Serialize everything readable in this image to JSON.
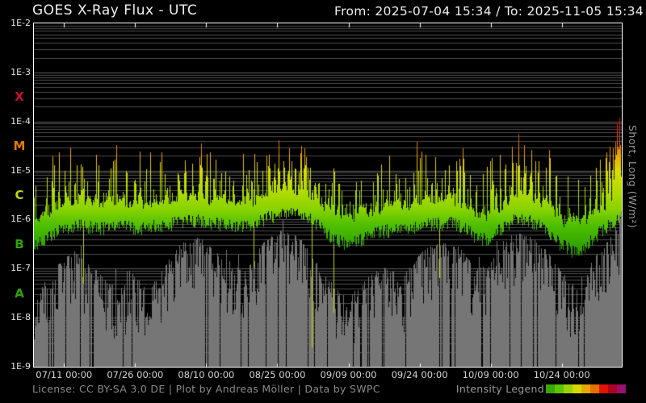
{
  "header": {
    "title": "GOES X-Ray Flux - UTC",
    "date_range": "From: 2025-07-04 15:34  /  To: 2025-11-05 15:34"
  },
  "footer": {
    "license": "License: CC BY-SA 3.0 DE | Plot by Andreas Möller | Data by SWPC",
    "legend_label": "Intensity Legend"
  },
  "right_axis_label": "Short, Long (W/m²)",
  "chart_data": {
    "type": "line",
    "title": "GOES X-Ray Flux - UTC",
    "x_start": "2025-07-04 15:34",
    "x_end": "2025-11-05 15:34",
    "x_total_days": 124,
    "y_scale": "log10 W/m²",
    "ylim_log10": [
      -9,
      -2
    ],
    "yticks": [
      {
        "label": "1E-2",
        "log10": -2
      },
      {
        "label": "1E-3",
        "log10": -3
      },
      {
        "label": "1E-4",
        "log10": -4
      },
      {
        "label": "1E-5",
        "log10": -5
      },
      {
        "label": "1E-6",
        "log10": -6
      },
      {
        "label": "1E-7",
        "log10": -7
      },
      {
        "label": "1E-8",
        "log10": -8
      },
      {
        "label": "1E-9",
        "log10": -9
      }
    ],
    "flare_class_labels": [
      {
        "label": "X",
        "log10": -3.5,
        "color": "#c8102e"
      },
      {
        "label": "M",
        "log10": -4.5,
        "color": "#e87800"
      },
      {
        "label": "C",
        "log10": -5.5,
        "color": "#c6d400"
      },
      {
        "label": "B",
        "log10": -6.5,
        "color": "#2fa300"
      },
      {
        "label": "A",
        "log10": -7.5,
        "color": "#2fa300"
      }
    ],
    "xticks": [
      {
        "day": 6.35,
        "label": "07/11 00:00"
      },
      {
        "day": 21.35,
        "label": "07/26 00:00"
      },
      {
        "day": 36.35,
        "label": "08/10 00:00"
      },
      {
        "day": 51.35,
        "label": "08/25 00:00"
      },
      {
        "day": 66.35,
        "label": "09/09 00:00"
      },
      {
        "day": 81.35,
        "label": "09/24 00:00"
      },
      {
        "day": 96.35,
        "label": "10/09 00:00"
      },
      {
        "day": 111.35,
        "label": "10/24 00:00"
      }
    ],
    "grid": {
      "minor_color": "#4c4c4c",
      "major_color": "#606060",
      "frame_color": "#ffffff"
    },
    "noise_seed": 1337,
    "series": [
      {
        "name": "short",
        "color": "#767676",
        "envelope_log10": [
          [
            0,
            -7.7
          ],
          [
            2,
            -7.3
          ],
          [
            5,
            -6.9
          ],
          [
            8,
            -6.6
          ],
          [
            12,
            -6.9
          ],
          [
            16,
            -7.3
          ],
          [
            20,
            -7.0
          ],
          [
            24,
            -7.45
          ],
          [
            28,
            -6.85
          ],
          [
            31,
            -6.45
          ],
          [
            35,
            -6.35
          ],
          [
            40,
            -6.8
          ],
          [
            45,
            -7.0
          ],
          [
            49,
            -6.35
          ],
          [
            52,
            -6.2
          ],
          [
            55,
            -6.3
          ],
          [
            58,
            -6.5
          ],
          [
            62,
            -7.2
          ],
          [
            66,
            -7.6
          ],
          [
            70,
            -7.2
          ],
          [
            74,
            -6.9
          ],
          [
            78,
            -7.1
          ],
          [
            82,
            -6.6
          ],
          [
            86,
            -6.45
          ],
          [
            90,
            -6.55
          ],
          [
            93,
            -7.0
          ],
          [
            96,
            -6.9
          ],
          [
            99,
            -6.4
          ],
          [
            102,
            -6.25
          ],
          [
            105,
            -6.35
          ],
          [
            108,
            -6.6
          ],
          [
            111,
            -7.0
          ],
          [
            114,
            -7.35
          ],
          [
            117,
            -6.9
          ],
          [
            120,
            -6.5
          ],
          [
            122,
            -6.2
          ],
          [
            124,
            -5.9
          ]
        ]
      },
      {
        "name": "long",
        "colormap": "intensity",
        "baseline_log10": [
          [
            0,
            -6.35
          ],
          [
            2,
            -6.2
          ],
          [
            4,
            -6.05
          ],
          [
            7,
            -5.95
          ],
          [
            10,
            -5.9
          ],
          [
            14,
            -5.97
          ],
          [
            18,
            -5.9
          ],
          [
            22,
            -5.97
          ],
          [
            26,
            -5.92
          ],
          [
            30,
            -5.85
          ],
          [
            34,
            -5.8
          ],
          [
            38,
            -5.85
          ],
          [
            42,
            -5.92
          ],
          [
            46,
            -5.88
          ],
          [
            50,
            -5.72
          ],
          [
            54,
            -5.65
          ],
          [
            57,
            -5.7
          ],
          [
            60,
            -5.88
          ],
          [
            63,
            -6.15
          ],
          [
            66,
            -6.3
          ],
          [
            69,
            -6.2
          ],
          [
            72,
            -6.05
          ],
          [
            76,
            -5.98
          ],
          [
            80,
            -5.93
          ],
          [
            84,
            -5.88
          ],
          [
            88,
            -5.85
          ],
          [
            91,
            -5.95
          ],
          [
            93,
            -6.15
          ],
          [
            96,
            -6.2
          ],
          [
            98,
            -6.0
          ],
          [
            100,
            -5.85
          ],
          [
            102,
            -5.75
          ],
          [
            105,
            -5.82
          ],
          [
            108,
            -6.0
          ],
          [
            111,
            -6.28
          ],
          [
            114,
            -6.45
          ],
          [
            116,
            -6.35
          ],
          [
            118,
            -6.15
          ],
          [
            120,
            -6.0
          ],
          [
            122,
            -5.85
          ],
          [
            124,
            -5.7
          ]
        ],
        "flares_log10": [
          [
            3.9,
            -4.65
          ],
          [
            5.2,
            -5.1
          ],
          [
            8.6,
            -5.05
          ],
          [
            10.5,
            -4.95
          ],
          [
            11.3,
            -5.1
          ],
          [
            13.0,
            -5.3
          ],
          [
            17.4,
            -5.05
          ],
          [
            19.0,
            -5.2
          ],
          [
            20.2,
            -5.35
          ],
          [
            24.5,
            -5.4
          ],
          [
            27.0,
            -5.3
          ],
          [
            30.4,
            -4.75
          ],
          [
            31.8,
            -4.6
          ],
          [
            33.4,
            -4.8
          ],
          [
            34.9,
            -4.7
          ],
          [
            36.4,
            -4.65
          ],
          [
            37.9,
            -4.85
          ],
          [
            39.5,
            -5.0
          ],
          [
            41.2,
            -5.05
          ],
          [
            45.9,
            -4.9
          ],
          [
            48.2,
            -5.0
          ],
          [
            49.6,
            -4.55
          ],
          [
            50.8,
            -4.7
          ],
          [
            51.6,
            -4.35
          ],
          [
            52.7,
            -4.55
          ],
          [
            53.8,
            -4.45
          ],
          [
            55.1,
            -4.65
          ],
          [
            56.2,
            -4.8
          ],
          [
            57.1,
            -4.4
          ],
          [
            58.2,
            -4.75
          ],
          [
            60.0,
            -5.1
          ],
          [
            64.3,
            -4.95
          ],
          [
            69.0,
            -5.15
          ],
          [
            72.5,
            -5.4
          ],
          [
            76.0,
            -5.3
          ],
          [
            80.2,
            -5.2
          ],
          [
            84.0,
            -5.15
          ],
          [
            87.5,
            -4.85
          ],
          [
            89.1,
            -4.75
          ],
          [
            90.6,
            -4.7
          ],
          [
            92.0,
            -5.0
          ],
          [
            96.6,
            -4.65
          ],
          [
            99.4,
            -4.6
          ],
          [
            100.9,
            -4.45
          ],
          [
            102.2,
            -4.25
          ],
          [
            103.4,
            -4.45
          ],
          [
            104.9,
            -4.5
          ],
          [
            106.4,
            -4.6
          ],
          [
            108.0,
            -4.9
          ],
          [
            110.2,
            -5.1
          ],
          [
            113.0,
            -5.5
          ],
          [
            116.2,
            -5.2
          ],
          [
            118.6,
            -4.75
          ],
          [
            120.8,
            -4.5
          ],
          [
            121.4,
            -4.35
          ],
          [
            122.1,
            -4.45
          ],
          [
            122.6,
            -4.28
          ],
          [
            123.0,
            -3.95
          ],
          [
            123.5,
            -3.88
          ]
        ],
        "dropouts_log10": [
          [
            10.4,
            -7.3
          ],
          [
            46.4,
            -7.0
          ],
          [
            58.6,
            -8.6
          ],
          [
            63.2,
            -7.9
          ],
          [
            85.5,
            -7.2
          ]
        ]
      }
    ],
    "intensity_colormap": [
      [
        -7.2,
        "#157800"
      ],
      [
        -6.6,
        "#2f9e00"
      ],
      [
        -6.1,
        "#4fc000"
      ],
      [
        -5.8,
        "#86d200"
      ],
      [
        -5.4,
        "#b4dc00"
      ],
      [
        -5.0,
        "#dcdc00"
      ],
      [
        -4.75,
        "#ecb400"
      ],
      [
        -4.45,
        "#ec7000"
      ],
      [
        -4.1,
        "#e41400"
      ],
      [
        -3.8,
        "#c40028"
      ],
      [
        -3.3,
        "#981070"
      ]
    ],
    "legend_colors": [
      "#3aa800",
      "#5fc400",
      "#9ad400",
      "#d8d800",
      "#e8a800",
      "#e87000",
      "#e01400",
      "#b00024",
      "#981070"
    ]
  }
}
